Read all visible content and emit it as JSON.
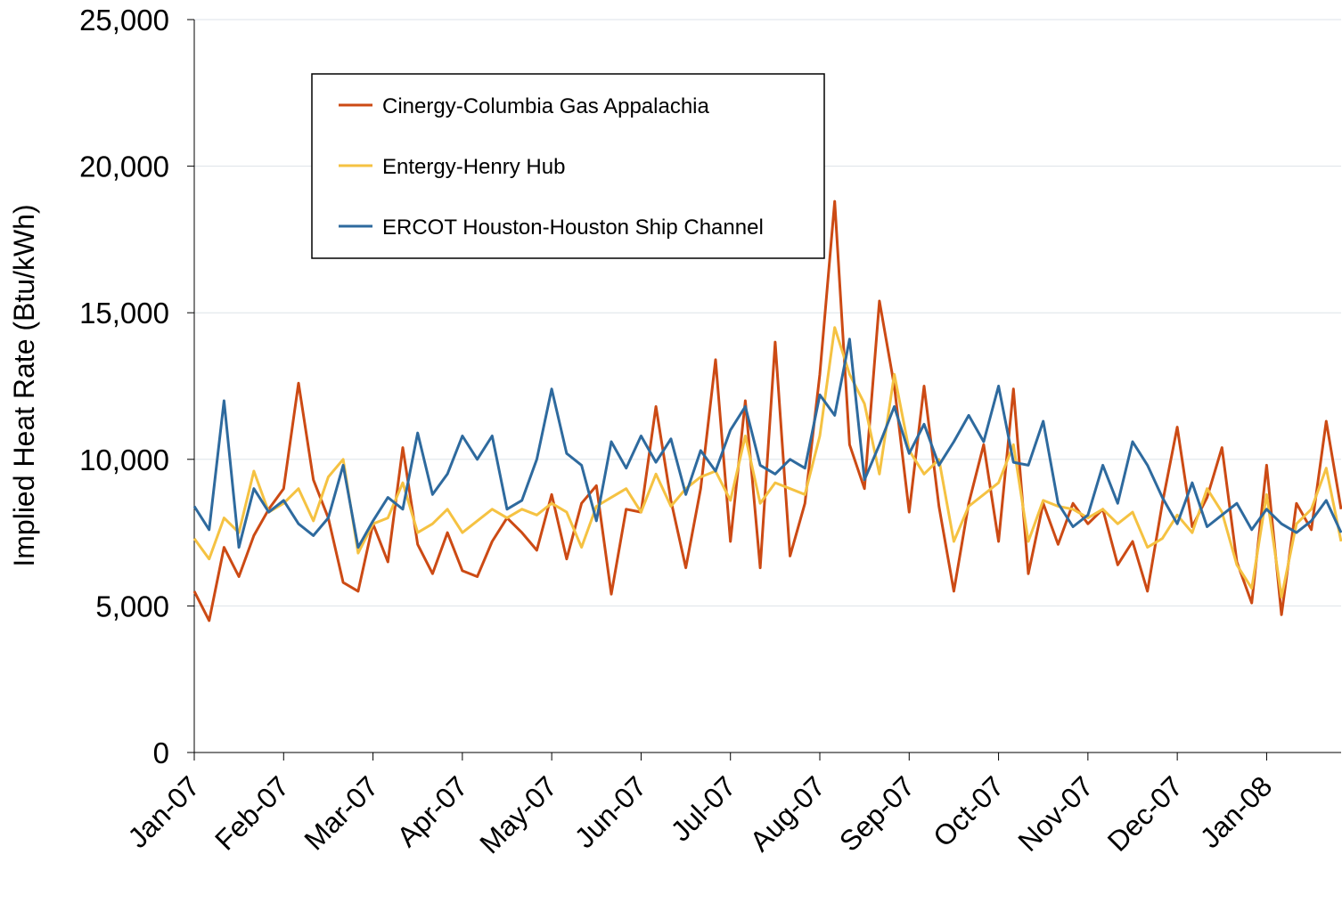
{
  "chart_data": {
    "type": "line",
    "y_label": "Implied Heat Rate (Btu/kWh)",
    "categories": [
      "Jan-07",
      null,
      null,
      null,
      null,
      null,
      "Feb-07",
      null,
      null,
      null,
      null,
      null,
      "Mar-07",
      null,
      null,
      null,
      null,
      null,
      "Apr-07",
      null,
      null,
      null,
      null,
      null,
      "May-07",
      null,
      null,
      null,
      null,
      null,
      "Jun-07",
      null,
      null,
      null,
      null,
      null,
      "Jul-07",
      null,
      null,
      null,
      null,
      null,
      "Aug-07",
      null,
      null,
      null,
      null,
      null,
      "Sep-07",
      null,
      null,
      null,
      null,
      null,
      "Oct-07",
      null,
      null,
      null,
      null,
      null,
      "Nov-07",
      null,
      null,
      null,
      null,
      null,
      "Dec-07",
      null,
      null,
      null,
      null,
      null,
      "Jan-08",
      null,
      null,
      null,
      null,
      null
    ],
    "series": [
      {
        "name": "Cinergy-Columbia Gas Appalachia",
        "color": "#cc4a14",
        "values": [
          5500,
          4500,
          7000,
          6000,
          7400,
          8300,
          9000,
          12600,
          9300,
          8000,
          5800,
          5500,
          7800,
          6500,
          10400,
          7100,
          6100,
          7500,
          6200,
          6000,
          7200,
          8000,
          7500,
          6900,
          8800,
          6600,
          8500,
          9100,
          5400,
          8300,
          8200,
          11800,
          8600,
          6300,
          9000,
          13400,
          7200,
          12000,
          6300,
          14000,
          6700,
          8500,
          12900,
          18800,
          10500,
          9000,
          15400,
          12500,
          8200,
          12500,
          8400,
          5500,
          8500,
          10500,
          7200,
          12400,
          6100,
          8500,
          7100,
          8500,
          7800,
          8300,
          6400,
          7200,
          5500,
          8500,
          11100,
          7700,
          8700,
          10400,
          6500,
          5100,
          9800,
          4700,
          8500,
          7600,
          11300,
          8300
        ]
      },
      {
        "name": "Entergy-Henry Hub",
        "color": "#f5c242",
        "values": [
          7300,
          6600,
          8000,
          7500,
          9600,
          8200,
          8500,
          9000,
          7900,
          9400,
          10000,
          6800,
          7800,
          8000,
          9200,
          7500,
          7800,
          8300,
          7500,
          7900,
          8300,
          8000,
          8300,
          8100,
          8500,
          8200,
          7000,
          8400,
          8700,
          9000,
          8200,
          9500,
          8400,
          9000,
          9400,
          9600,
          8600,
          10800,
          8500,
          9200,
          9000,
          8800,
          10800,
          14500,
          12900,
          11900,
          9500,
          12900,
          10300,
          9500,
          10000,
          7200,
          8400,
          8800,
          9200,
          10500,
          7200,
          8600,
          8400,
          8300,
          8000,
          8300,
          7800,
          8200,
          7000,
          7300,
          8100,
          7500,
          9000,
          8200,
          6400,
          5600,
          8800,
          5300,
          7800,
          8300,
          9700,
          7200
        ]
      },
      {
        "name": "ERCOT Houston-Houston Ship Channel",
        "color": "#2e6a9e",
        "values": [
          8400,
          7600,
          12000,
          7000,
          9000,
          8200,
          8600,
          7800,
          7400,
          8000,
          9800,
          7000,
          7900,
          8700,
          8300,
          10900,
          8800,
          9500,
          10800,
          10000,
          10800,
          8300,
          8600,
          10000,
          12400,
          10200,
          9800,
          7900,
          10600,
          9700,
          10800,
          9900,
          10700,
          8800,
          10300,
          9600,
          11000,
          11800,
          9800,
          9500,
          10000,
          9700,
          12200,
          11500,
          14100,
          9300,
          10500,
          11800,
          10200,
          11200,
          9800,
          10600,
          11500,
          10600,
          12500,
          9900,
          9800,
          11300,
          8500,
          7700,
          8100,
          9800,
          8500,
          10600,
          9800,
          8700,
          7800,
          9200,
          7700,
          8100,
          8500,
          7600,
          8300,
          7800,
          7500,
          7900,
          8600,
          7500
        ]
      }
    ],
    "ylim": [
      0,
      25000
    ],
    "yticks": [
      0,
      {
        "value": 5000,
        "label": "5,000"
      },
      {
        "value": 10000,
        "label": "10,000"
      },
      {
        "value": 15000,
        "label": "15,000"
      },
      {
        "value": 20000,
        "label": "20,000"
      },
      {
        "value": 25000,
        "label": "25,000"
      }
    ],
    "grid": true
  }
}
